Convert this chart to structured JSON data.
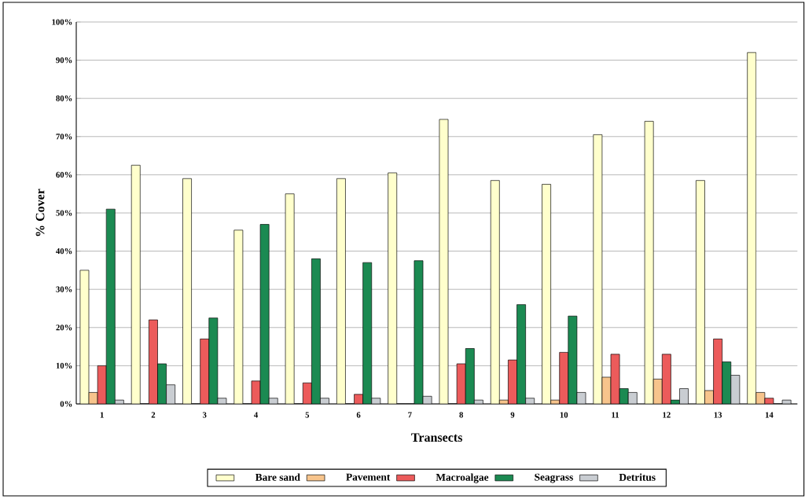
{
  "chart_data": {
    "type": "bar",
    "xlabel": "Transects",
    "ylabel": "% Cover",
    "categories": [
      "1",
      "2",
      "3",
      "4",
      "5",
      "6",
      "7",
      "8",
      "9",
      "10",
      "11",
      "12",
      "13",
      "14"
    ],
    "series": [
      {
        "name": "Bare sand",
        "color": "#ffffcc",
        "values": [
          35,
          62.5,
          59,
          45.5,
          55,
          59,
          60.5,
          74.5,
          58.5,
          57.5,
          70.5,
          74,
          58.5,
          92
        ]
      },
      {
        "name": "Pavement",
        "color": "#f7c48c",
        "values": [
          3,
          0,
          0,
          0,
          0,
          0,
          0,
          0,
          1,
          1,
          7,
          6.5,
          3.5,
          3
        ]
      },
      {
        "name": "Macroalgae",
        "color": "#ec5b5b",
        "values": [
          10,
          22,
          17,
          6,
          5.5,
          2.5,
          0,
          10.5,
          11.5,
          13.5,
          13,
          13,
          17,
          1.5
        ]
      },
      {
        "name": "Seagrass",
        "color": "#1b8a52",
        "values": [
          51,
          10.5,
          22.5,
          47,
          38,
          37,
          37.5,
          14.5,
          26,
          23,
          4,
          1,
          11,
          0
        ]
      },
      {
        "name": "Detritus",
        "color": "#c9cdd2",
        "values": [
          1,
          5,
          1.5,
          1.5,
          1.5,
          1.5,
          2,
          1,
          1.5,
          3,
          3,
          4,
          7.5,
          1
        ]
      }
    ],
    "ylim": [
      0,
      100
    ],
    "yticks": [
      {
        "value": 0,
        "label": "0%"
      },
      {
        "value": 10,
        "label": "10%"
      },
      {
        "value": 20,
        "label": "20%"
      },
      {
        "value": 30,
        "label": "30%"
      },
      {
        "value": 40,
        "label": "40%"
      },
      {
        "value": 50,
        "label": "50%"
      },
      {
        "value": 60,
        "label": "60%"
      },
      {
        "value": 70,
        "label": "70%"
      },
      {
        "value": 80,
        "label": "80%"
      },
      {
        "value": 90,
        "label": "90%"
      },
      {
        "value": 100,
        "label": "100%"
      }
    ],
    "grid": "y",
    "legend": "bottom"
  }
}
